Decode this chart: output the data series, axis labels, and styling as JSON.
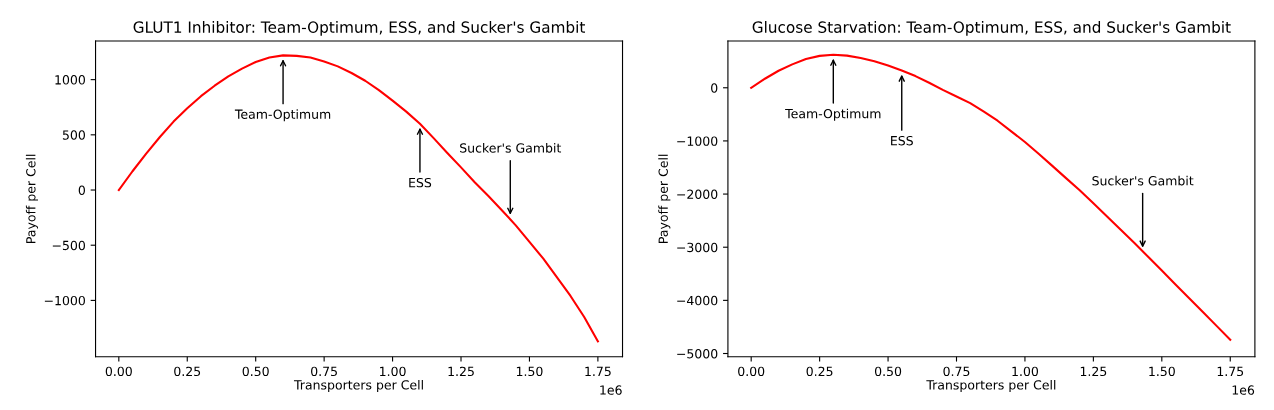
{
  "chart_data": [
    {
      "type": "line",
      "title": "GLUT1 Inhibitor: Team-Optimum, ESS, and Sucker's Gambit",
      "xlabel": "Transporters per Cell",
      "ylabel": "Payoff per Cell",
      "x": [
        0,
        0.05,
        0.1,
        0.15,
        0.2,
        0.25,
        0.3,
        0.35,
        0.4,
        0.45,
        0.5,
        0.55,
        0.6,
        0.65,
        0.7,
        0.75,
        0.8,
        0.85,
        0.9,
        0.95,
        1.0,
        1.05,
        1.1,
        1.15,
        1.2,
        1.25,
        1.3,
        1.35,
        1.4,
        1.45,
        1.5,
        1.55,
        1.6,
        1.65,
        1.7,
        1.75
      ],
      "series": [
        {
          "color": "#ff0000",
          "values": [
            0,
            170,
            330,
            480,
            620,
            740,
            850,
            945,
            1030,
            1100,
            1160,
            1200,
            1220,
            1215,
            1200,
            1165,
            1120,
            1060,
            990,
            905,
            810,
            710,
            600,
            470,
            335,
            205,
            70,
            -55,
            -185,
            -320,
            -470,
            -620,
            -790,
            -960,
            -1150,
            -1370
          ]
        }
      ],
      "xlim": [
        -0.085,
        1.84
      ],
      "ylim": [
        -1510,
        1350
      ],
      "xticks": [
        {
          "value": 0,
          "label": "0.00"
        },
        0.25,
        {
          "value": 0.5,
          "label": "0.50"
        },
        0.75,
        {
          "value": 1,
          "label": "1.00"
        },
        1.25,
        {
          "value": 1.5,
          "label": "1.50"
        },
        1.75
      ],
      "yticks": [
        {
          "value": -1000,
          "label": "−1000"
        },
        {
          "value": -500,
          "label": "−500"
        },
        0,
        500,
        1000
      ],
      "annotations": [
        {
          "text": "Team-Optimum",
          "x": 0.6,
          "y": 1210
        },
        {
          "text": "ESS",
          "x": 1.1,
          "y": 590
        },
        {
          "text": "Sucker's Gambit",
          "x": 1.43,
          "y": -250
        },
        "1e6"
      ],
      "grid": false,
      "legend": false,
      "line_style": "solid",
      "marker": "none"
    },
    {
      "type": "line",
      "title": "Glucose Starvation: Team-Optimum, ESS, and Sucker's Gambit",
      "xlabel": "Transporters per Cell",
      "ylabel": "Payoff per Cell",
      "x": [
        0,
        0.05,
        0.1,
        0.15,
        0.2,
        0.25,
        0.3,
        0.35,
        0.4,
        0.45,
        0.5,
        0.55,
        0.6,
        0.65,
        0.7,
        0.75,
        0.8,
        0.85,
        0.9,
        0.95,
        1.0,
        1.05,
        1.1,
        1.15,
        1.2,
        1.25,
        1.3,
        1.35,
        1.4,
        1.45,
        1.5,
        1.55,
        1.6,
        1.65,
        1.7,
        1.75
      ],
      "series": [
        {
          "color": "#ff0000",
          "values": [
            0,
            170,
            320,
            440,
            540,
            600,
            620,
            605,
            560,
            500,
            420,
            325,
            220,
            95,
            -40,
            -165,
            -290,
            -450,
            -620,
            -820,
            -1020,
            -1240,
            -1470,
            -1700,
            -1930,
            -2175,
            -2420,
            -2670,
            -2920,
            -3180,
            -3440,
            -3700,
            -3960,
            -4220,
            -4480,
            -4740
          ]
        }
      ],
      "xlim": [
        -0.085,
        1.84
      ],
      "ylim": [
        -5060,
        880
      ],
      "xticks": [
        {
          "value": 0,
          "label": "0.00"
        },
        0.25,
        {
          "value": 0.5,
          "label": "0.50"
        },
        0.75,
        {
          "value": 1,
          "label": "1.00"
        },
        1.25,
        {
          "value": 1.5,
          "label": "1.50"
        },
        1.75
      ],
      "yticks": [
        {
          "value": -5000,
          "label": "−5000"
        },
        {
          "value": -4000,
          "label": "−4000"
        },
        {
          "value": -3000,
          "label": "−3000"
        },
        {
          "value": -2000,
          "label": "−2000"
        },
        {
          "value": -1000,
          "label": "−1000"
        },
        0
      ],
      "annotations": [
        {
          "text": "Team-Optimum",
          "x": 0.3,
          "y": 600
        },
        {
          "text": "ESS",
          "x": 0.55,
          "y": 300
        },
        {
          "text": "Sucker's Gambit",
          "x": 1.43,
          "y": -3060
        },
        "1e6"
      ],
      "grid": false,
      "legend": false,
      "line_style": "solid",
      "marker": "none"
    }
  ]
}
